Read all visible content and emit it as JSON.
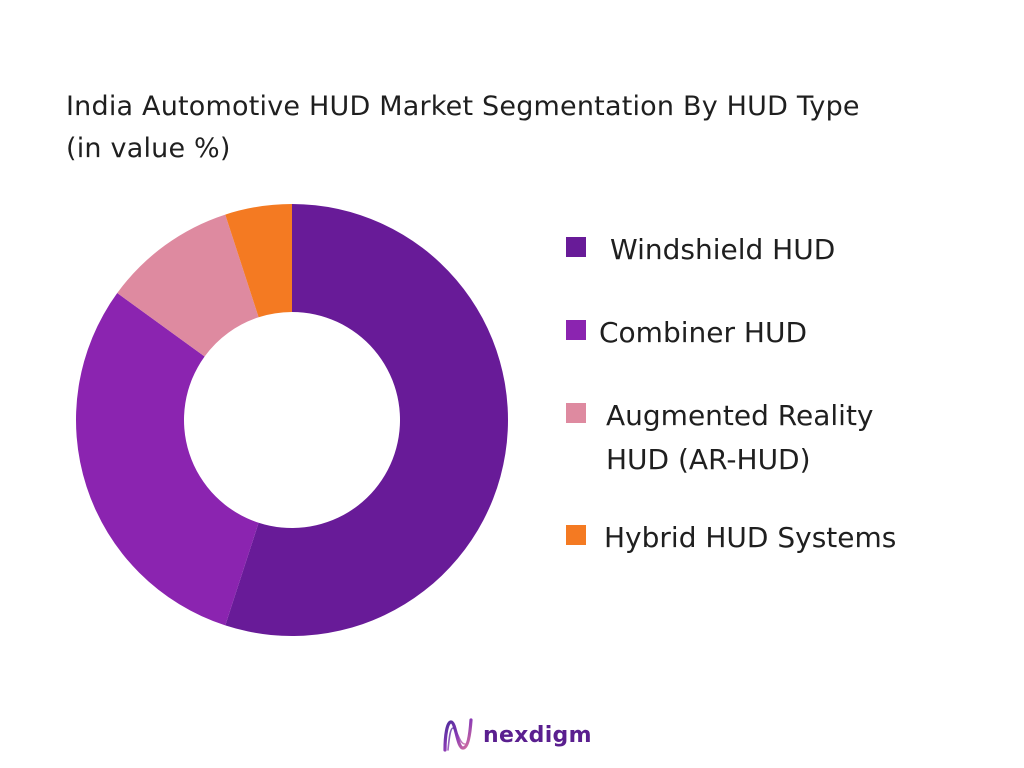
{
  "chart_data": {
    "type": "pie",
    "title_line1": "India Automotive HUD Market Segmentation By HUD Type",
    "title_line2": "(in value %)",
    "categories": [
      "Windshield HUD",
      "Combiner HUD",
      "Augmented Reality HUD (AR-HUD)",
      "Hybrid HUD Systems"
    ],
    "values": [
      55,
      30,
      10,
      5
    ],
    "colors": [
      "#681b98",
      "#8b24b0",
      "#de8aa0",
      "#f47a22"
    ],
    "legend_position": "right",
    "donut": true,
    "legend": [
      {
        "label": "Windshield HUD",
        "color": "#681b98"
      },
      {
        "label": "Combiner HUD",
        "color": "#8b24b0"
      },
      {
        "label": "Augmented Reality HUD (AR-HUD)",
        "color": "#de8aa0"
      },
      {
        "label": "Hybrid HUD Systems",
        "color": "#f47a22"
      }
    ]
  },
  "logo": {
    "text": "nexdigm",
    "icon": "nexdigm-wave-logo-icon",
    "color": "#5a1f8f"
  }
}
